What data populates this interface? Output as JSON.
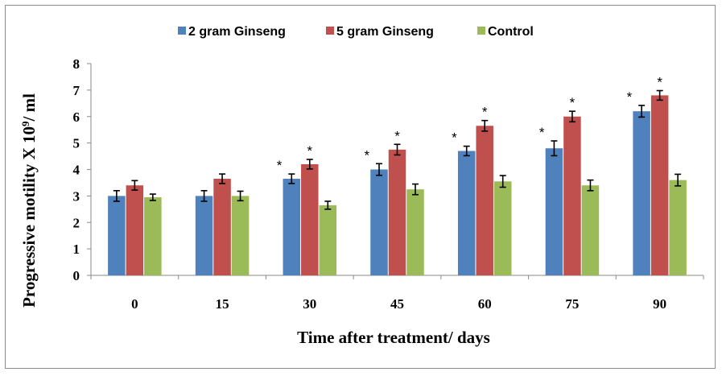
{
  "chart_data": {
    "type": "bar",
    "title": "",
    "xlabel": "Time after treatment/ days",
    "ylabel_parts": [
      "Progressive motility X 10",
      "9",
      "/ ml"
    ],
    "ylim": [
      0,
      8
    ],
    "yticks": [
      "0",
      "1",
      "2",
      "3",
      "4",
      "5",
      "6",
      "7",
      "8"
    ],
    "categories": [
      "0",
      "15",
      "30",
      "45",
      "60",
      "75",
      "90"
    ],
    "legend_position": "top",
    "significance_marker": "*",
    "series": [
      {
        "name": "2 gram Ginseng",
        "color": "#4f81bd",
        "values": [
          3.0,
          3.0,
          3.65,
          4.0,
          4.7,
          4.8,
          6.2
        ],
        "errors": [
          0.2,
          0.2,
          0.18,
          0.22,
          0.18,
          0.28,
          0.22
        ],
        "significant": [
          false,
          false,
          true,
          true,
          true,
          true,
          true
        ]
      },
      {
        "name": "5 gram Ginseng",
        "color": "#c0504d",
        "values": [
          3.4,
          3.65,
          4.2,
          4.75,
          5.65,
          6.0,
          6.8
        ],
        "errors": [
          0.18,
          0.18,
          0.18,
          0.2,
          0.2,
          0.2,
          0.18
        ],
        "significant": [
          false,
          false,
          true,
          true,
          true,
          true,
          true
        ]
      },
      {
        "name": "Control",
        "color": "#9bbb59",
        "values": [
          2.95,
          3.0,
          2.65,
          3.25,
          3.55,
          3.4,
          3.6
        ],
        "errors": [
          0.12,
          0.18,
          0.15,
          0.2,
          0.22,
          0.2,
          0.22
        ],
        "significant": [
          false,
          false,
          false,
          false,
          false,
          false,
          false
        ]
      }
    ]
  }
}
